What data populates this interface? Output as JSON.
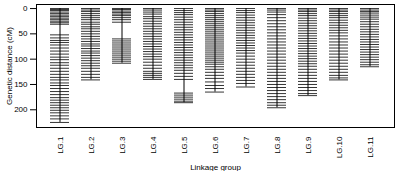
{
  "chart_data": {
    "type": "linkage_map",
    "xlabel": "Linkage group",
    "ylabel": "Genetic distance (cM)",
    "color": "#000000",
    "ylim": [
      -8,
      235
    ],
    "yticks": [
      0,
      50,
      100,
      150,
      200
    ],
    "categories": [
      "LG.1",
      "LG.2",
      "LG.3",
      "LG.4",
      "LG.5",
      "LG.6",
      "LG.7",
      "LG.8",
      "LG.9",
      "LG.10",
      "LG.11"
    ],
    "markers": [
      [
        0,
        2,
        4,
        7,
        10,
        13,
        16,
        19,
        22,
        25,
        28,
        31,
        52,
        58,
        63,
        67,
        72,
        78,
        84,
        90,
        96,
        101,
        107,
        112,
        118,
        124,
        130,
        136,
        141,
        147,
        152,
        158,
        164,
        170,
        176,
        181,
        186,
        191,
        196,
        201,
        206,
        212,
        218,
        225
      ],
      [
        0,
        3,
        6,
        10,
        14,
        18,
        22,
        27,
        31,
        36,
        40,
        45,
        50,
        55,
        60,
        65,
        70,
        74,
        79,
        84,
        88,
        93,
        98,
        103,
        108,
        113,
        118,
        124,
        130,
        136,
        141
      ],
      [
        0,
        2,
        5,
        8,
        11,
        14,
        18,
        22,
        27,
        60,
        64,
        68,
        72,
        76,
        80,
        84,
        88,
        92,
        96,
        100,
        104,
        108
      ],
      [
        0,
        3,
        7,
        11,
        16,
        20,
        25,
        30,
        35,
        40,
        45,
        50,
        55,
        60,
        65,
        70,
        75,
        80,
        85,
        90,
        95,
        100,
        106,
        112,
        118,
        124,
        128,
        132,
        136,
        140
      ],
      [
        0,
        4,
        8,
        12,
        17,
        22,
        27,
        32,
        37,
        42,
        47,
        52,
        57,
        62,
        67,
        72,
        77,
        82,
        87,
        92,
        97,
        102,
        107,
        112,
        117,
        122,
        128,
        134,
        140,
        167,
        171,
        175,
        179,
        183,
        186
      ],
      [
        0,
        3,
        6,
        10,
        14,
        18,
        22,
        26,
        30,
        34,
        38,
        42,
        46,
        50,
        54,
        58,
        62,
        66,
        70,
        74,
        78,
        82,
        86,
        90,
        94,
        98,
        102,
        106,
        110,
        115,
        120,
        126,
        132,
        138,
        145,
        152,
        158,
        165
      ],
      [
        0,
        4,
        8,
        13,
        18,
        23,
        28,
        33,
        38,
        43,
        48,
        53,
        58,
        63,
        68,
        73,
        78,
        83,
        88,
        94,
        100,
        106,
        112,
        118,
        124,
        130,
        136,
        142,
        148,
        155
      ],
      [
        0,
        3,
        7,
        12,
        18,
        24,
        30,
        36,
        42,
        48,
        54,
        60,
        66,
        72,
        78,
        84,
        90,
        96,
        102,
        108,
        114,
        120,
        126,
        132,
        138,
        144,
        150,
        156,
        162,
        168,
        174,
        180,
        186,
        191,
        196
      ],
      [
        0,
        3,
        6,
        10,
        14,
        19,
        24,
        29,
        34,
        39,
        44,
        49,
        54,
        59,
        64,
        69,
        74,
        79,
        84,
        89,
        94,
        99,
        104,
        109,
        114,
        120,
        126,
        132,
        138,
        144,
        150,
        156,
        162,
        168,
        172
      ],
      [
        0,
        3,
        6,
        10,
        14,
        18,
        23,
        28,
        33,
        38,
        43,
        48,
        54,
        60,
        66,
        72,
        78,
        84,
        90,
        96,
        102,
        108,
        114,
        120,
        126,
        132,
        137,
        141
      ],
      [
        0,
        3,
        6,
        9,
        13,
        17,
        21,
        26,
        31,
        36,
        41,
        46,
        51,
        56,
        61,
        66,
        71,
        76,
        81,
        86,
        91,
        96,
        101,
        106,
        111,
        115
      ]
    ]
  }
}
